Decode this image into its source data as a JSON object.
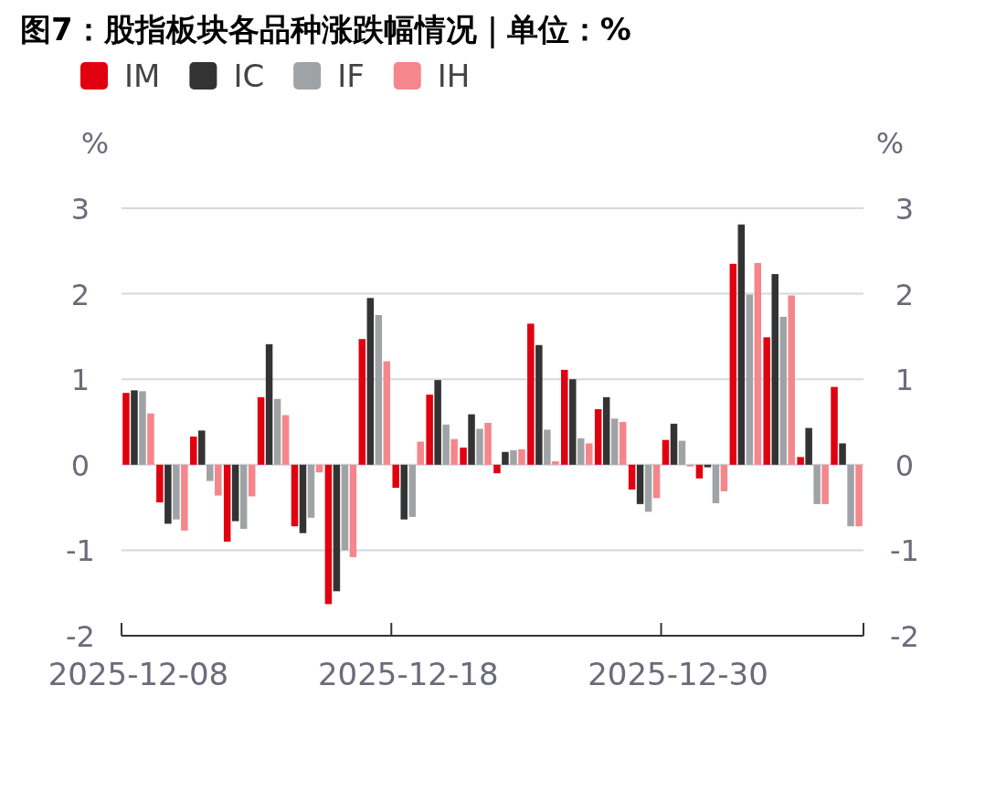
{
  "chart_data": {
    "type": "bar",
    "title": "图7：股指板块各品种涨跌幅情况｜单位：%",
    "ylabel": "%",
    "y2label": "%",
    "legend": "top left",
    "grid": "y",
    "categories": [
      "2025-12-08",
      null,
      null,
      null,
      null,
      null,
      null,
      null,
      "2025-12-18",
      null,
      null,
      null,
      null,
      null,
      null,
      null,
      "2025-12-30",
      null,
      null,
      null,
      null,
      null
    ],
    "ylim": [
      -2,
      3
    ],
    "yticks": [
      -2,
      -1,
      0,
      1,
      2,
      3
    ],
    "y2lim": [
      -2,
      3
    ],
    "y2ticks": [
      -2,
      -1,
      0,
      1,
      2,
      3
    ],
    "series": [
      {
        "name": "IM",
        "color": "#e0000f",
        "values": [
          0.84,
          -0.44,
          0.33,
          -0.9,
          0.79,
          -0.72,
          -1.63,
          1.47,
          -0.27,
          0.82,
          0.2,
          -0.1,
          1.65,
          1.11,
          0.65,
          -0.29,
          0.29,
          -0.16,
          2.35,
          1.49,
          0.09,
          0.91
        ]
      },
      {
        "name": "IC",
        "color": "#333333",
        "values": [
          0.87,
          -0.69,
          0.4,
          -0.66,
          1.41,
          -0.8,
          -1.48,
          1.95,
          -0.64,
          0.99,
          0.59,
          0.15,
          1.4,
          1.0,
          0.79,
          -0.46,
          0.48,
          -0.03,
          2.81,
          2.23,
          0.43,
          0.25
        ]
      },
      {
        "name": "IF",
        "color": "#a0a3a6",
        "values": [
          0.86,
          -0.64,
          -0.19,
          -0.75,
          0.77,
          -0.62,
          -1.0,
          1.75,
          -0.61,
          0.47,
          0.42,
          0.17,
          0.41,
          0.31,
          0.54,
          -0.55,
          0.28,
          -0.45,
          1.99,
          1.73,
          -0.46,
          -0.72
        ]
      },
      {
        "name": "IH",
        "color": "#f4868c",
        "values": [
          0.6,
          -0.77,
          -0.36,
          -0.37,
          0.58,
          -0.09,
          -1.08,
          1.21,
          0.27,
          0.3,
          0.49,
          0.18,
          0.04,
          0.25,
          0.5,
          -0.39,
          -0.02,
          -0.31,
          2.36,
          1.98,
          -0.46,
          -0.72
        ]
      }
    ]
  }
}
